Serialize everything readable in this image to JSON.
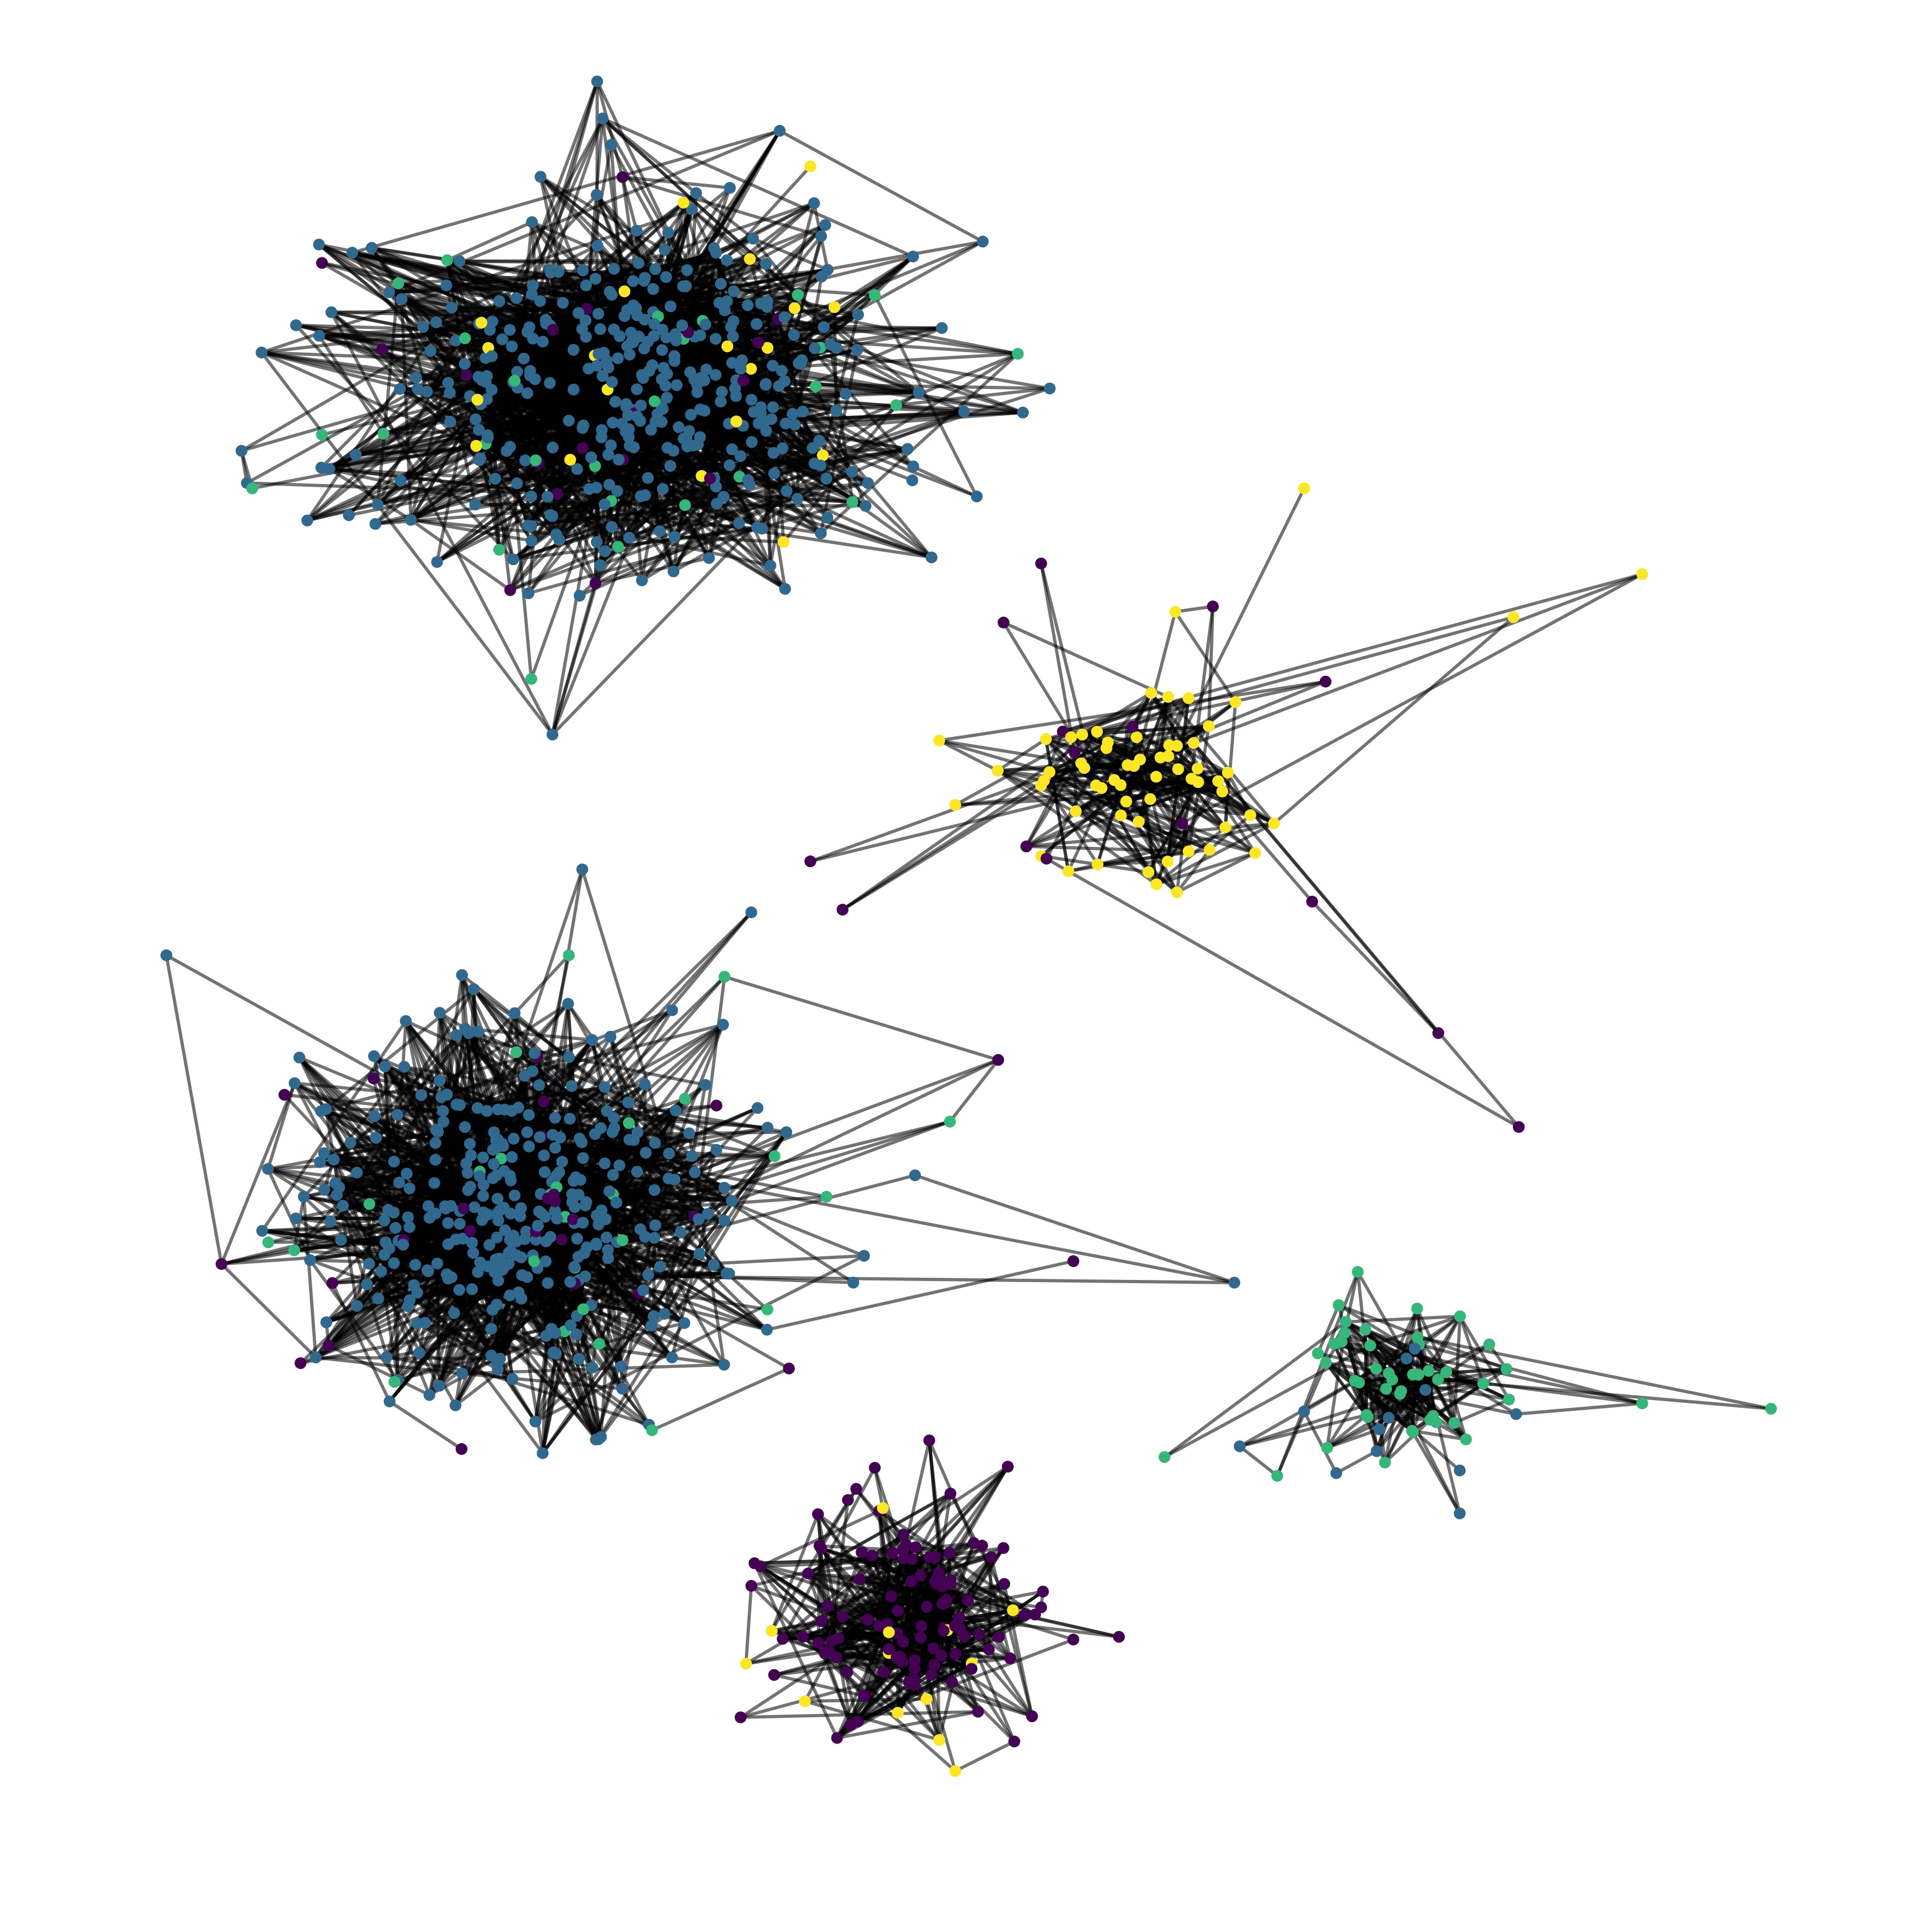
{
  "palette": {
    "dark_purple": "#440154",
    "blue": "#31688e",
    "green": "#35b779",
    "yellow": "#fde725",
    "edge": "#000000",
    "background": "#ffffff"
  },
  "communities": [
    {
      "id": "top-left-cluster",
      "main_color": "blue",
      "approx_nodes": 420,
      "minor_colors": [
        "green",
        "dark_purple",
        "yellow"
      ]
    },
    {
      "id": "middle-right-cluster",
      "main_color": "yellow",
      "approx_nodes": 60,
      "minor_colors": [
        "dark_purple"
      ]
    },
    {
      "id": "bottom-left-cluster",
      "main_color": "blue",
      "approx_nodes": 380,
      "minor_colors": [
        "green",
        "dark_purple"
      ]
    },
    {
      "id": "bottom-right-cluster",
      "main_color": "green",
      "approx_nodes": 45,
      "minor_colors": [
        "blue"
      ]
    },
    {
      "id": "bottom-middle-cluster",
      "main_color": "dark_purple",
      "approx_nodes": 110,
      "minor_colors": [
        "yellow"
      ]
    }
  ]
}
